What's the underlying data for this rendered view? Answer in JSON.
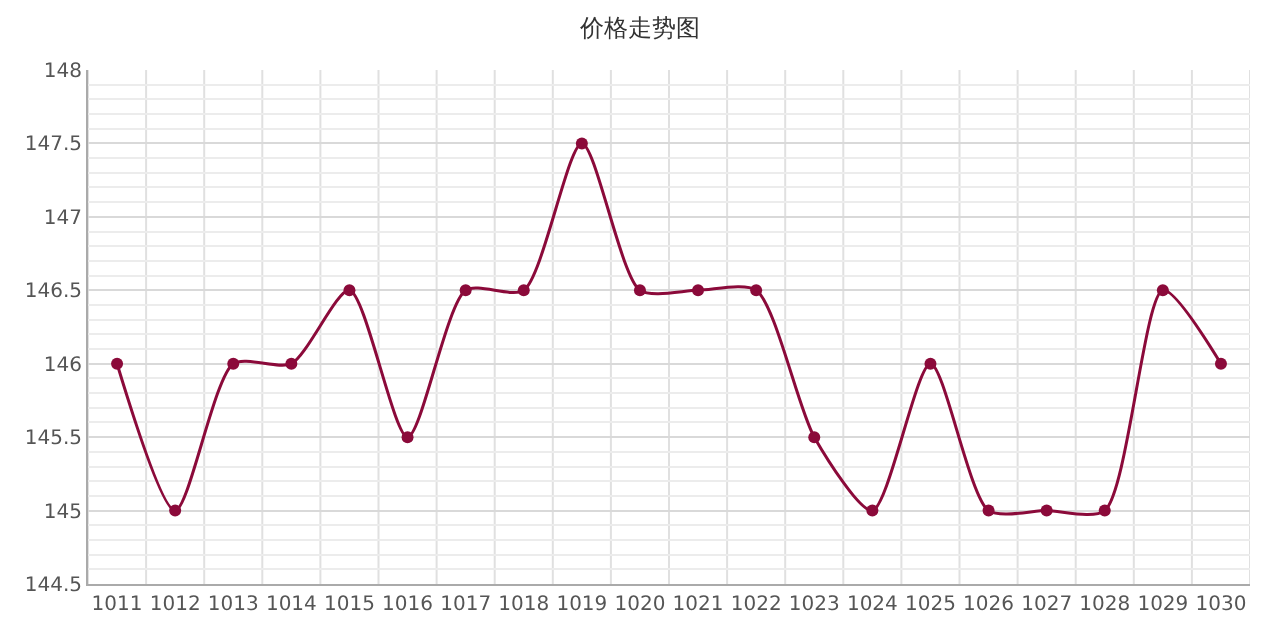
{
  "chart_data": {
    "type": "line",
    "title": "价格走势图",
    "categories": [
      "1011",
      "1012",
      "1013",
      "1014",
      "1015",
      "1016",
      "1017",
      "1018",
      "1019",
      "1020",
      "1021",
      "1022",
      "1023",
      "1024",
      "1025",
      "1026",
      "1027",
      "1028",
      "1029",
      "1030"
    ],
    "series": [
      {
        "color": "#8b0a3a",
        "values": [
          146,
          145,
          146,
          146,
          146.5,
          145.5,
          146.5,
          146.5,
          147.5,
          146.5,
          146.5,
          146.5,
          145.5,
          145,
          146,
          145,
          145,
          145,
          146.5,
          146
        ]
      }
    ],
    "ylim": [
      144.5,
      148
    ],
    "yticks": [
      144.5,
      145,
      145.5,
      146,
      146.5,
      147,
      147.5,
      148
    ],
    "grid": true,
    "marker": "circle",
    "line_style": "solid",
    "legend": false
  }
}
